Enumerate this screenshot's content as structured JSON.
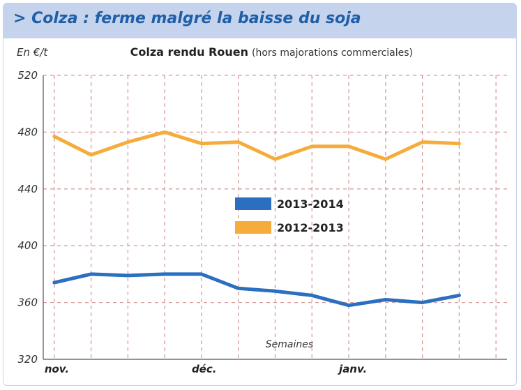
{
  "header": {
    "title": "> Colza : ferme malgré la baisse du soja"
  },
  "chart_data": {
    "type": "line",
    "title": "Colza rendu Rouen",
    "subtitle": "(hors majorations commerciales)",
    "ylabel": "En €/t",
    "xlabel": "Semaines",
    "ylim": [
      320,
      520
    ],
    "yticks": [
      320,
      360,
      400,
      440,
      480,
      520
    ],
    "x_range": [
      1,
      13
    ],
    "x_tick_labels": [
      {
        "label": "nov.",
        "x": 1
      },
      {
        "label": "déc.",
        "x": 5
      },
      {
        "label": "janv.",
        "x": 9
      }
    ],
    "grid": true,
    "legend_position": "center",
    "series": [
      {
        "name": "2013-2014",
        "color": "#2a6fc0",
        "x": [
          1,
          2,
          3,
          4,
          5,
          6,
          7,
          8,
          9,
          10,
          11,
          12
        ],
        "values": [
          374,
          380,
          379,
          380,
          380,
          370,
          368,
          365,
          358,
          362,
          360,
          365
        ]
      },
      {
        "name": "2012-2013",
        "color": "#f5ac3b",
        "x": [
          1,
          2,
          3,
          4,
          5,
          6,
          7,
          8,
          9,
          10,
          11,
          12
        ],
        "values": [
          477,
          464,
          473,
          480,
          472,
          473,
          461,
          470,
          470,
          461,
          473,
          472
        ]
      }
    ]
  }
}
